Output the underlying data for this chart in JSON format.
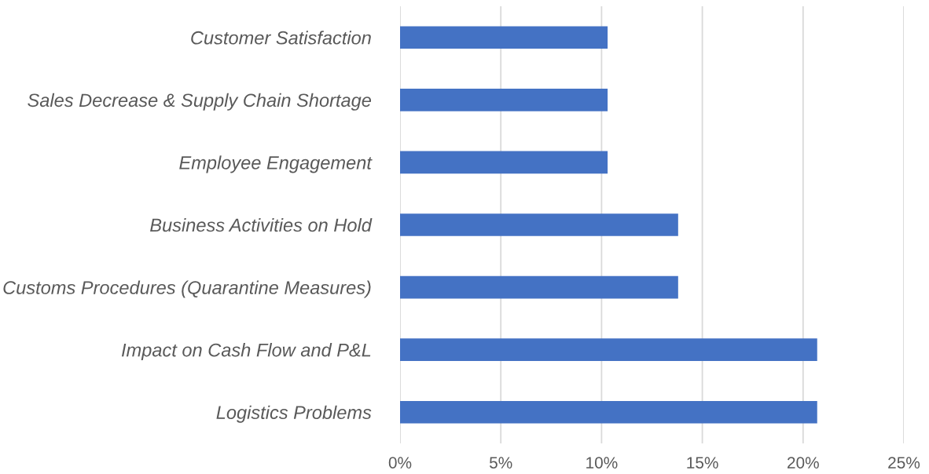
{
  "chart_data": {
    "type": "bar",
    "orientation": "horizontal",
    "categories": [
      "Customer Satisfaction",
      "Sales Decrease & Supply Chain Shortage",
      "Employee Engagement",
      "Business Activities on Hold",
      "Customs Procedures (Quarantine Measures)",
      "Impact on Cash Flow and P&L",
      "Logistics Problems"
    ],
    "values": [
      10.3,
      10.3,
      10.3,
      13.8,
      13.8,
      20.7,
      20.7
    ],
    "color": "#4472c4",
    "xlim": [
      0,
      25
    ],
    "xticks": [
      {
        "value": 0,
        "label": "0%"
      },
      {
        "value": 5,
        "label": "5%"
      },
      {
        "value": 10,
        "label": "10%"
      },
      {
        "value": 15,
        "label": "15%"
      },
      {
        "value": 20,
        "label": "20%"
      },
      {
        "value": 25,
        "label": "25%"
      }
    ],
    "grid": "x"
  }
}
